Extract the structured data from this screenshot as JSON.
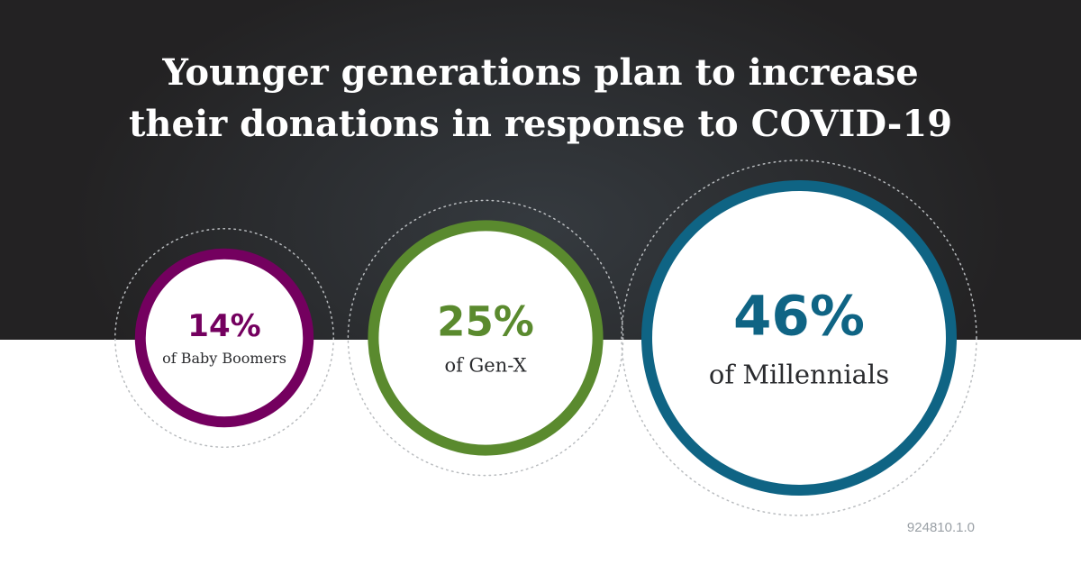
{
  "title": {
    "line1": "Younger generations plan to increase",
    "line2": "their donations in response to COVID-19"
  },
  "chart_data": {
    "type": "bubble",
    "title": "Younger generations plan to increase their donations in response to COVID-19",
    "unit": "%",
    "series": [
      {
        "label": "of Baby Boomers",
        "value": 14,
        "value_label": "14%",
        "color": "#74005f"
      },
      {
        "label": "of Gen-X",
        "value": 25,
        "value_label": "25%",
        "color": "#5a8a2e"
      },
      {
        "label": "of Millennials",
        "value": 46,
        "value_label": "46%",
        "color": "#0f6484"
      }
    ],
    "grid": false,
    "legend": "none"
  },
  "colors": {
    "background_dark": "#262628",
    "background_light": "#ffffff",
    "label_text": "#2a2b2e"
  },
  "footer": {
    "code": "924810.1.0"
  }
}
